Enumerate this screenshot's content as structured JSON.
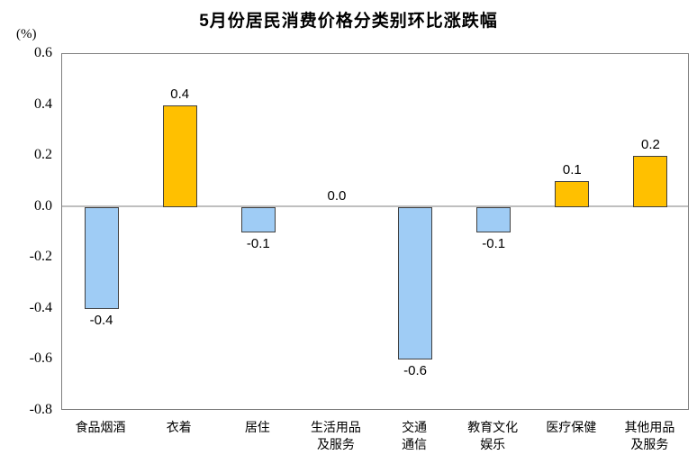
{
  "chart_data": {
    "type": "bar",
    "title": "5月份居民消费价格分类别环比涨跌幅",
    "ylabel_unit": "(%)",
    "categories": [
      "食品烟酒",
      "衣着",
      "居住",
      "生活用品\n及服务",
      "交通\n通信",
      "教育文化\n娱乐",
      "医疗保健",
      "其他用品\n及服务"
    ],
    "values": [
      -0.4,
      0.4,
      -0.1,
      0.0,
      -0.6,
      -0.1,
      0.1,
      0.2
    ],
    "value_labels": [
      "-0.4",
      "0.4",
      "-0.1",
      "0.0",
      "-0.6",
      "-0.1",
      "0.1",
      "0.2"
    ],
    "yticks": [
      "0.6",
      "0.4",
      "0.2",
      "0.0",
      "-0.2",
      "-0.4",
      "-0.6",
      "-0.8"
    ],
    "ytick_values": [
      0.6,
      0.4,
      0.2,
      0.0,
      -0.2,
      -0.4,
      -0.6,
      -0.8
    ],
    "ylim": [
      -0.8,
      0.6
    ],
    "grid": false,
    "legend": "none",
    "colors": {
      "positive_bar": "#FFC000",
      "negative_bar": "#9FCCF5",
      "bar_border": "#404040",
      "zero_axis_line": "#BFBFBF",
      "plot_border": "#7F7F7F",
      "text": "#000000"
    }
  }
}
